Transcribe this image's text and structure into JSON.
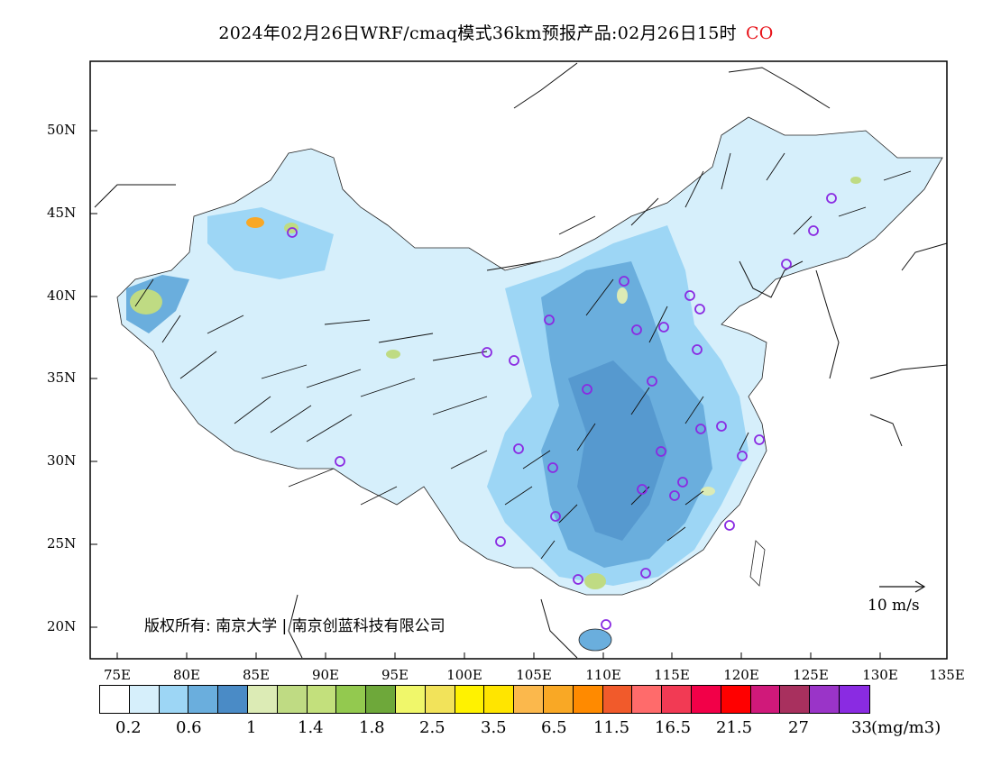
{
  "title": {
    "text": "2024年02月26日WRF/cmaq模式36km预报产品:02月26日15时",
    "variable": "CO",
    "variable_color": "#e8141b"
  },
  "map": {
    "lon_ticks": [
      "75E",
      "80E",
      "85E",
      "90E",
      "95E",
      "100E",
      "105E",
      "110E",
      "115E",
      "120E",
      "125E",
      "130E",
      "135E"
    ],
    "lat_ticks": [
      "50N",
      "45N",
      "40N",
      "35N",
      "30N",
      "25N",
      "20N"
    ],
    "copyright": "版权所有: 南京大学 | 南京创蓝科技有限公司",
    "wind_reference": "10 m/s"
  },
  "legend": {
    "colors": [
      "#ffffff",
      "#d6effb",
      "#9dd6f5",
      "#6aaedd",
      "#4a8bc6",
      "#dcebb5",
      "#bfdb83",
      "#c3e07c",
      "#93c94f",
      "#6ea83a",
      "#f0f76a",
      "#f2e35a",
      "#fff200",
      "#ffe500",
      "#fbb84c",
      "#f9a825",
      "#ff8a00",
      "#f15a2b",
      "#ff6b6b",
      "#f23a54",
      "#f20048",
      "#ff0000",
      "#d0197a",
      "#a8305e",
      "#9a34c8",
      "#8a2be2"
    ],
    "labels": [
      "0.2",
      "0.6",
      "1",
      "1.4",
      "1.8",
      "2.5",
      "3.5",
      "6.5",
      "11.5",
      "16.5",
      "21.5",
      "27",
      "33"
    ],
    "unit": "(mg/m3)"
  }
}
